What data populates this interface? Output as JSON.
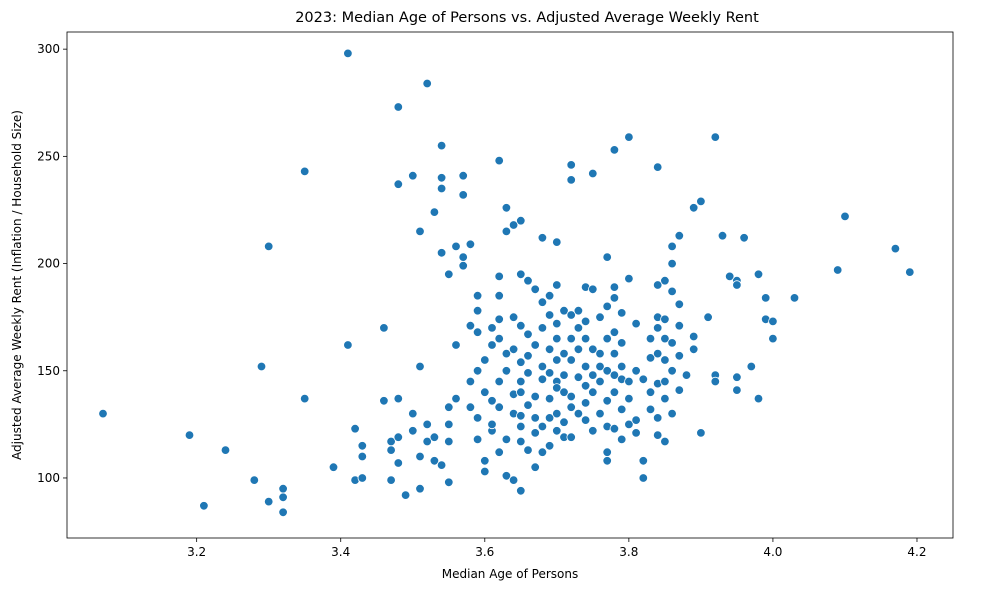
{
  "chart_data": {
    "type": "scatter",
    "title": "2023: Median Age of Persons vs. Adjusted Average Weekly Rent",
    "xlabel": "Median Age of Persons",
    "ylabel": "Adjusted Average Weekly Rent (Inflation / Household Size)",
    "xlim": [
      3.02,
      4.25
    ],
    "ylim": [
      72,
      308
    ],
    "xticks": [
      3.2,
      3.4,
      3.6,
      3.8,
      4.0,
      4.2
    ],
    "xtick_labels": [
      "3.2",
      "3.4",
      "3.6",
      "3.8",
      "4.0",
      "4.2"
    ],
    "yticks": [
      100,
      150,
      200,
      250,
      300
    ],
    "ytick_labels": [
      "100",
      "150",
      "200",
      "250",
      "300"
    ],
    "grid": false,
    "legend": "none",
    "marker_color": "#1f77b4",
    "points": [
      [
        3.07,
        130
      ],
      [
        3.19,
        120
      ],
      [
        3.21,
        87
      ],
      [
        3.24,
        113
      ],
      [
        3.28,
        99
      ],
      [
        3.29,
        152
      ],
      [
        3.3,
        208
      ],
      [
        3.3,
        89
      ],
      [
        3.32,
        95
      ],
      [
        3.32,
        84
      ],
      [
        3.32,
        91
      ],
      [
        3.35,
        137
      ],
      [
        3.35,
        243
      ],
      [
        3.39,
        105
      ],
      [
        3.41,
        298
      ],
      [
        3.41,
        162
      ],
      [
        3.42,
        99
      ],
      [
        3.42,
        123
      ],
      [
        3.43,
        100
      ],
      [
        3.43,
        110
      ],
      [
        3.43,
        115
      ],
      [
        3.46,
        136
      ],
      [
        3.46,
        170
      ],
      [
        3.47,
        117
      ],
      [
        3.47,
        99
      ],
      [
        3.47,
        113
      ],
      [
        3.48,
        119
      ],
      [
        3.48,
        137
      ],
      [
        3.48,
        107
      ],
      [
        3.48,
        237
      ],
      [
        3.48,
        273
      ],
      [
        3.49,
        92
      ],
      [
        3.5,
        241
      ],
      [
        3.5,
        130
      ],
      [
        3.5,
        122
      ],
      [
        3.51,
        215
      ],
      [
        3.51,
        152
      ],
      [
        3.51,
        95
      ],
      [
        3.51,
        110
      ],
      [
        3.52,
        117
      ],
      [
        3.52,
        125
      ],
      [
        3.52,
        284
      ],
      [
        3.53,
        224
      ],
      [
        3.53,
        108
      ],
      [
        3.53,
        119
      ],
      [
        3.54,
        205
      ],
      [
        3.54,
        240
      ],
      [
        3.54,
        255
      ],
      [
        3.54,
        235
      ],
      [
        3.54,
        106
      ],
      [
        3.55,
        117
      ],
      [
        3.55,
        133
      ],
      [
        3.55,
        125
      ],
      [
        3.55,
        98
      ],
      [
        3.55,
        195
      ],
      [
        3.56,
        162
      ],
      [
        3.56,
        137
      ],
      [
        3.56,
        208
      ],
      [
        3.57,
        241
      ],
      [
        3.57,
        232
      ],
      [
        3.57,
        199
      ],
      [
        3.57,
        203
      ],
      [
        3.58,
        171
      ],
      [
        3.58,
        145
      ],
      [
        3.58,
        209
      ],
      [
        3.58,
        133
      ],
      [
        3.59,
        185
      ],
      [
        3.59,
        178
      ],
      [
        3.59,
        168
      ],
      [
        3.59,
        150
      ],
      [
        3.59,
        128
      ],
      [
        3.59,
        118
      ],
      [
        3.6,
        103
      ],
      [
        3.6,
        140
      ],
      [
        3.6,
        155
      ],
      [
        3.6,
        108
      ],
      [
        3.61,
        162
      ],
      [
        3.61,
        170
      ],
      [
        3.61,
        136
      ],
      [
        3.61,
        122
      ],
      [
        3.61,
        125
      ],
      [
        3.62,
        174
      ],
      [
        3.62,
        185
      ],
      [
        3.62,
        165
      ],
      [
        3.62,
        145
      ],
      [
        3.62,
        133
      ],
      [
        3.62,
        112
      ],
      [
        3.62,
        248
      ],
      [
        3.62,
        194
      ],
      [
        3.63,
        226
      ],
      [
        3.63,
        215
      ],
      [
        3.63,
        158
      ],
      [
        3.63,
        150
      ],
      [
        3.63,
        101
      ],
      [
        3.63,
        118
      ],
      [
        3.64,
        175
      ],
      [
        3.64,
        160
      ],
      [
        3.64,
        130
      ],
      [
        3.64,
        99
      ],
      [
        3.64,
        139
      ],
      [
        3.64,
        218
      ],
      [
        3.65,
        195
      ],
      [
        3.65,
        171
      ],
      [
        3.65,
        154
      ],
      [
        3.65,
        140
      ],
      [
        3.65,
        145
      ],
      [
        3.65,
        129
      ],
      [
        3.65,
        117
      ],
      [
        3.65,
        94
      ],
      [
        3.65,
        124
      ],
      [
        3.65,
        220
      ],
      [
        3.66,
        192
      ],
      [
        3.66,
        167
      ],
      [
        3.66,
        157
      ],
      [
        3.66,
        149
      ],
      [
        3.66,
        113
      ],
      [
        3.66,
        134
      ],
      [
        3.67,
        188
      ],
      [
        3.67,
        162
      ],
      [
        3.67,
        138
      ],
      [
        3.67,
        121
      ],
      [
        3.67,
        105
      ],
      [
        3.67,
        128
      ],
      [
        3.68,
        182
      ],
      [
        3.68,
        170
      ],
      [
        3.68,
        212
      ],
      [
        3.68,
        146
      ],
      [
        3.68,
        112
      ],
      [
        3.68,
        152
      ],
      [
        3.68,
        124
      ],
      [
        3.69,
        185
      ],
      [
        3.69,
        176
      ],
      [
        3.69,
        160
      ],
      [
        3.69,
        149
      ],
      [
        3.69,
        137
      ],
      [
        3.69,
        115
      ],
      [
        3.69,
        128
      ],
      [
        3.7,
        210
      ],
      [
        3.7,
        190
      ],
      [
        3.7,
        172
      ],
      [
        3.7,
        165
      ],
      [
        3.7,
        155
      ],
      [
        3.7,
        145
      ],
      [
        3.7,
        142
      ],
      [
        3.7,
        130
      ],
      [
        3.7,
        122
      ],
      [
        3.71,
        178
      ],
      [
        3.71,
        158
      ],
      [
        3.71,
        148
      ],
      [
        3.71,
        119
      ],
      [
        3.71,
        140
      ],
      [
        3.71,
        126
      ],
      [
        3.72,
        176
      ],
      [
        3.72,
        165
      ],
      [
        3.72,
        155
      ],
      [
        3.72,
        138
      ],
      [
        3.72,
        246
      ],
      [
        3.72,
        239
      ],
      [
        3.72,
        119
      ],
      [
        3.72,
        133
      ],
      [
        3.73,
        178
      ],
      [
        3.73,
        170
      ],
      [
        3.73,
        147
      ],
      [
        3.73,
        130
      ],
      [
        3.73,
        160
      ],
      [
        3.74,
        189
      ],
      [
        3.74,
        173
      ],
      [
        3.74,
        165
      ],
      [
        3.74,
        152
      ],
      [
        3.74,
        143
      ],
      [
        3.74,
        135
      ],
      [
        3.74,
        127
      ],
      [
        3.75,
        242
      ],
      [
        3.75,
        188
      ],
      [
        3.75,
        160
      ],
      [
        3.75,
        148
      ],
      [
        3.75,
        140
      ],
      [
        3.75,
        122
      ],
      [
        3.76,
        175
      ],
      [
        3.76,
        158
      ],
      [
        3.76,
        152
      ],
      [
        3.76,
        145
      ],
      [
        3.76,
        130
      ],
      [
        3.77,
        203
      ],
      [
        3.77,
        180
      ],
      [
        3.77,
        165
      ],
      [
        3.77,
        150
      ],
      [
        3.77,
        136
      ],
      [
        3.77,
        124
      ],
      [
        3.77,
        112
      ],
      [
        3.77,
        108
      ],
      [
        3.78,
        189
      ],
      [
        3.78,
        184
      ],
      [
        3.78,
        168
      ],
      [
        3.78,
        158
      ],
      [
        3.78,
        148
      ],
      [
        3.78,
        140
      ],
      [
        3.78,
        123
      ],
      [
        3.78,
        253
      ],
      [
        3.79,
        177
      ],
      [
        3.79,
        163
      ],
      [
        3.79,
        152
      ],
      [
        3.79,
        146
      ],
      [
        3.79,
        132
      ],
      [
        3.79,
        118
      ],
      [
        3.8,
        259
      ],
      [
        3.8,
        193
      ],
      [
        3.8,
        145
      ],
      [
        3.8,
        137
      ],
      [
        3.8,
        125
      ],
      [
        3.81,
        172
      ],
      [
        3.81,
        150
      ],
      [
        3.81,
        127
      ],
      [
        3.81,
        121
      ],
      [
        3.82,
        108
      ],
      [
        3.82,
        100
      ],
      [
        3.82,
        146
      ],
      [
        3.83,
        165
      ],
      [
        3.83,
        156
      ],
      [
        3.83,
        140
      ],
      [
        3.83,
        132
      ],
      [
        3.84,
        245
      ],
      [
        3.84,
        190
      ],
      [
        3.84,
        175
      ],
      [
        3.84,
        170
      ],
      [
        3.84,
        158
      ],
      [
        3.84,
        144
      ],
      [
        3.84,
        128
      ],
      [
        3.84,
        120
      ],
      [
        3.85,
        192
      ],
      [
        3.85,
        174
      ],
      [
        3.85,
        165
      ],
      [
        3.85,
        155
      ],
      [
        3.85,
        145
      ],
      [
        3.85,
        137
      ],
      [
        3.85,
        117
      ],
      [
        3.86,
        208
      ],
      [
        3.86,
        200
      ],
      [
        3.86,
        187
      ],
      [
        3.86,
        163
      ],
      [
        3.86,
        150
      ],
      [
        3.86,
        130
      ],
      [
        3.87,
        213
      ],
      [
        3.87,
        181
      ],
      [
        3.87,
        171
      ],
      [
        3.87,
        157
      ],
      [
        3.87,
        141
      ],
      [
        3.88,
        148
      ],
      [
        3.89,
        226
      ],
      [
        3.89,
        166
      ],
      [
        3.89,
        160
      ],
      [
        3.9,
        229
      ],
      [
        3.9,
        121
      ],
      [
        3.91,
        175
      ],
      [
        3.92,
        259
      ],
      [
        3.92,
        148
      ],
      [
        3.92,
        145
      ],
      [
        3.93,
        213
      ],
      [
        3.94,
        194
      ],
      [
        3.95,
        192
      ],
      [
        3.95,
        190
      ],
      [
        3.95,
        147
      ],
      [
        3.95,
        141
      ],
      [
        3.96,
        212
      ],
      [
        3.97,
        152
      ],
      [
        3.98,
        195
      ],
      [
        3.98,
        137
      ],
      [
        3.99,
        184
      ],
      [
        3.99,
        174
      ],
      [
        4.0,
        173
      ],
      [
        4.0,
        165
      ],
      [
        4.03,
        184
      ],
      [
        4.09,
        197
      ],
      [
        4.1,
        222
      ],
      [
        4.17,
        207
      ],
      [
        4.19,
        196
      ]
    ]
  }
}
